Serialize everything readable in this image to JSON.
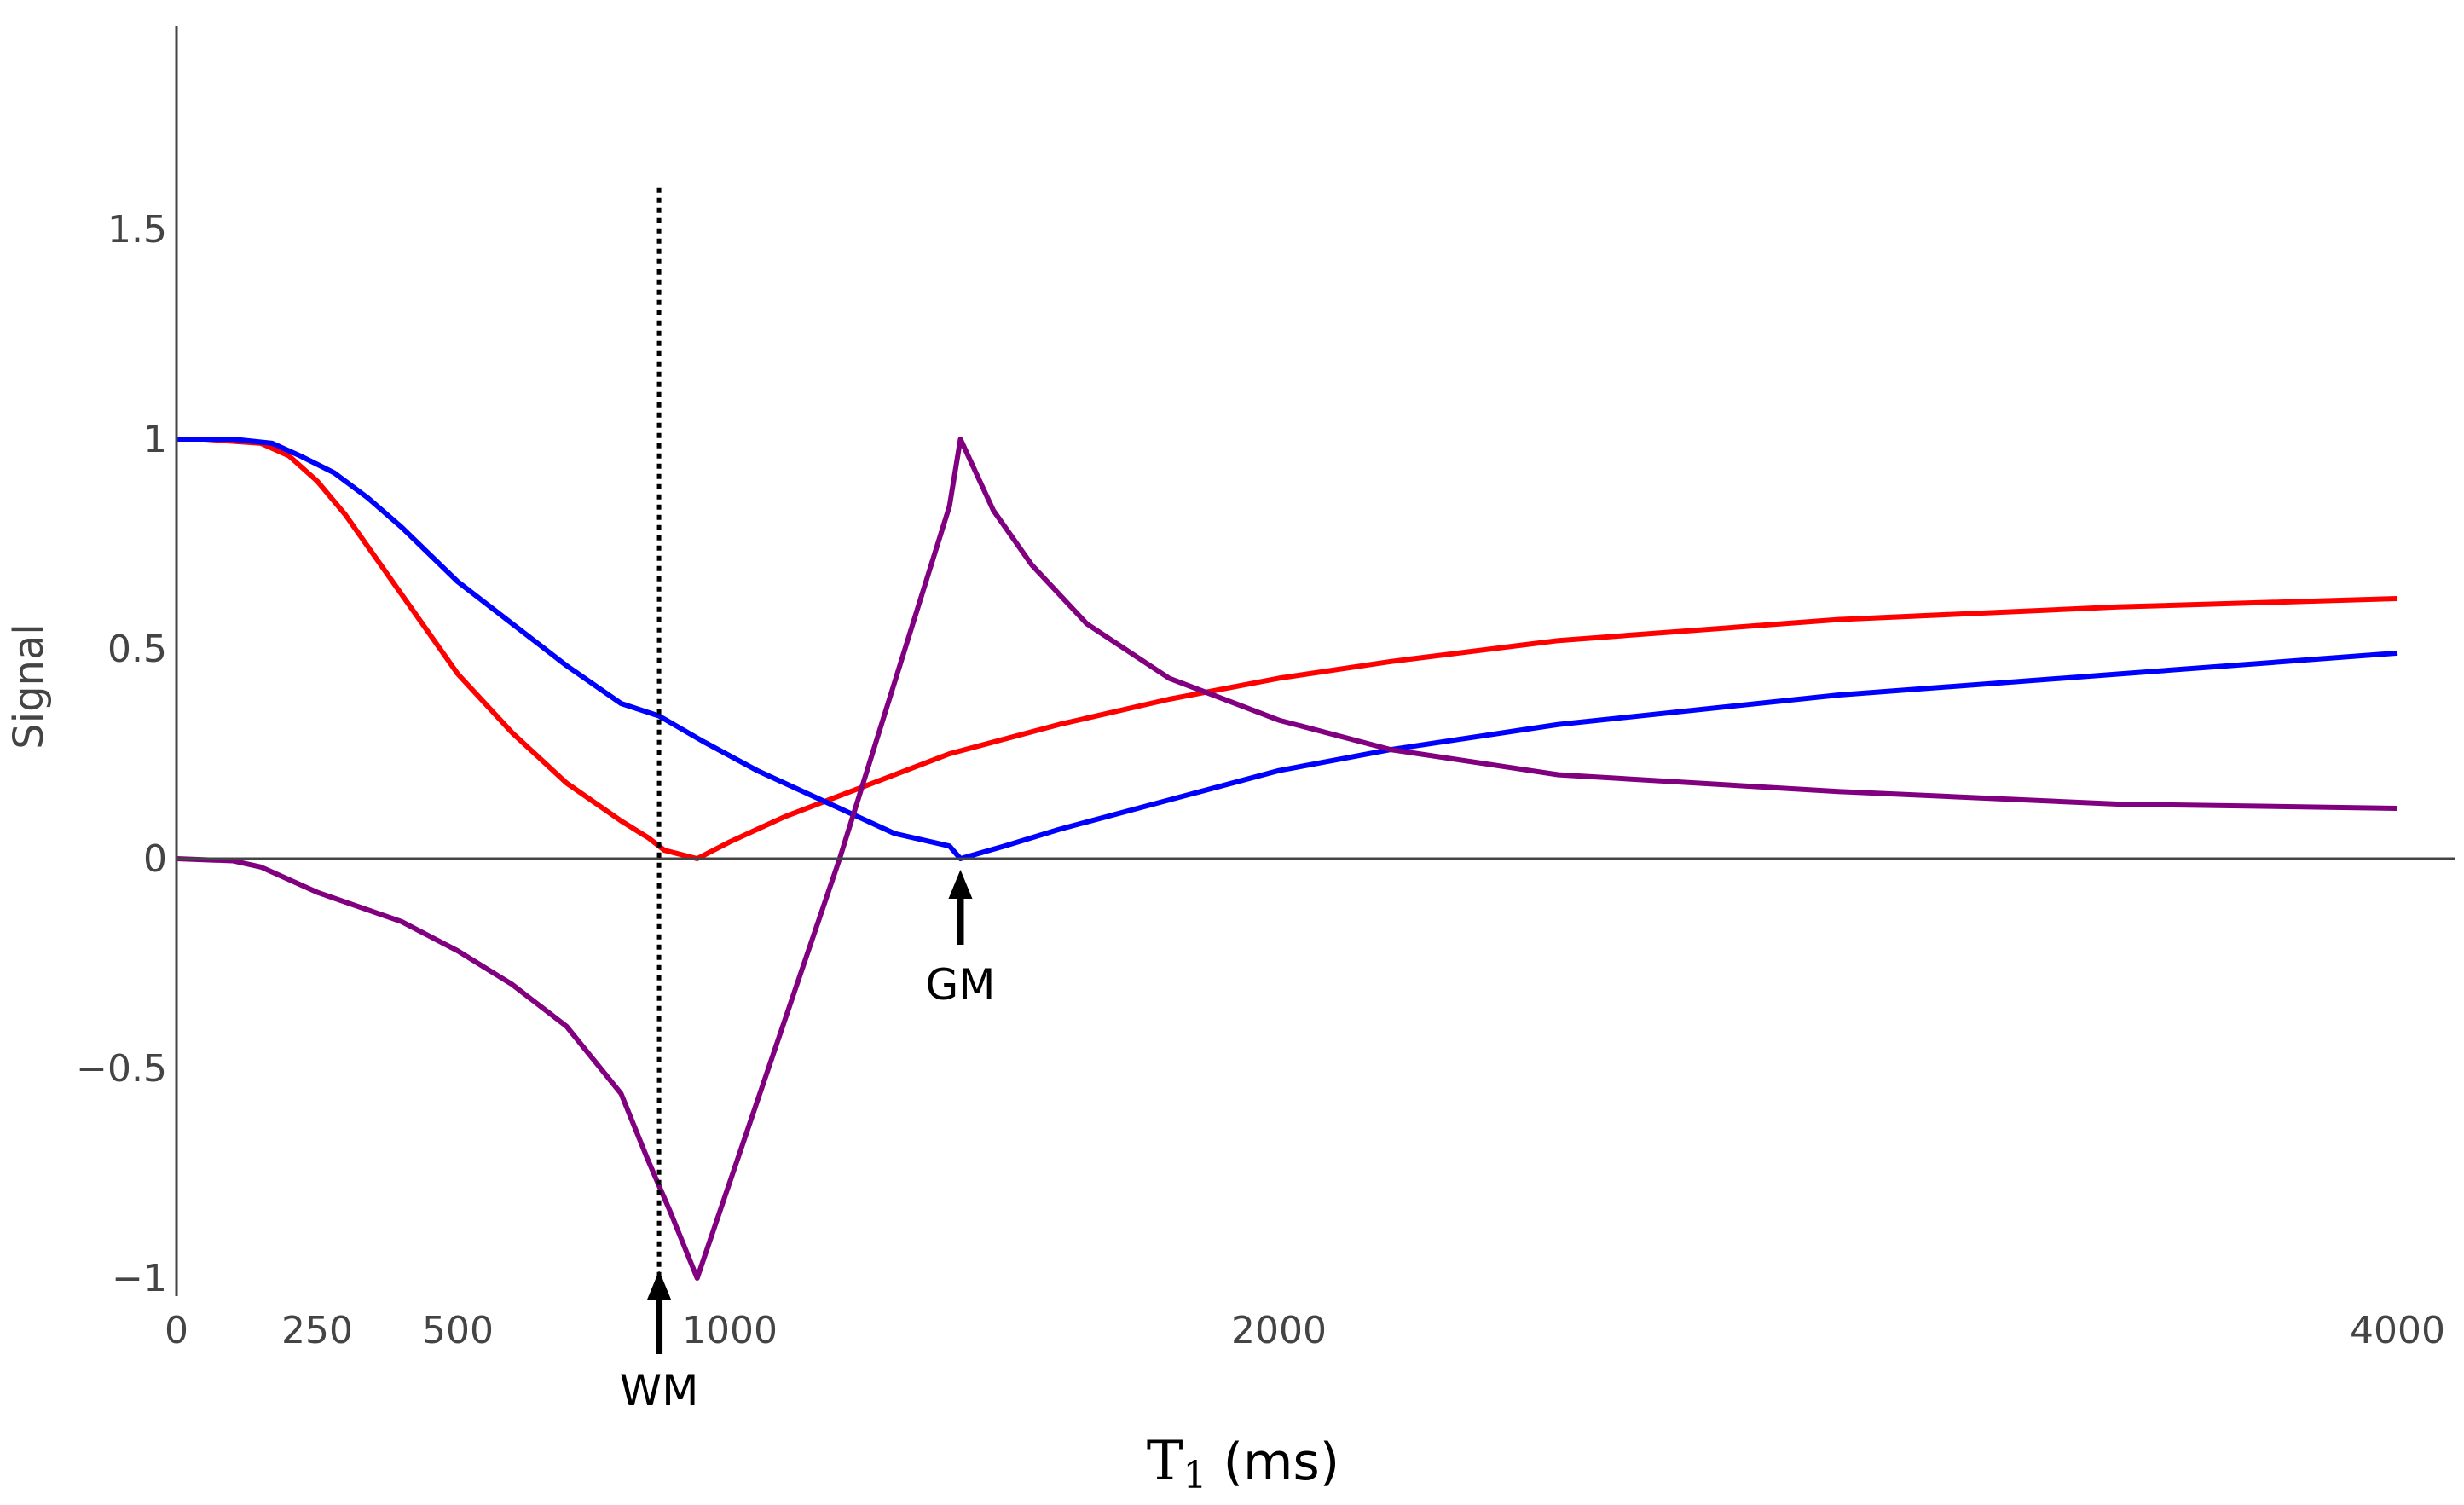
{
  "chart_data": {
    "type": "line",
    "title": "",
    "xlabel": "T₁ (ms)",
    "xlabel_main": "T",
    "xlabel_sub": "1",
    "xlabel_rest": " (ms)",
    "ylabel": "Signal",
    "xlim": [
      0,
      4000
    ],
    "ylim": [
      -1,
      2
    ],
    "x_tick_values": [
      0,
      250,
      500,
      1000,
      2000,
      4000
    ],
    "x_tick_labels": [
      "0",
      "250",
      "500",
      "1000",
      "2000",
      "4000"
    ],
    "y_tick_values": [
      -1,
      -0.5,
      0,
      0.5,
      1,
      1.5
    ],
    "y_tick_labels": [
      "−1",
      "−0.5",
      "0",
      "0.5",
      "1",
      "1.5"
    ],
    "grid": false,
    "series": [
      {
        "name": "red",
        "color": "#ff0000",
        "x": [
          0,
          50,
          100,
          150,
          200,
          250,
          300,
          400,
          500,
          600,
          700,
          800,
          850,
          880,
          940,
          1000,
          1100,
          1200,
          1400,
          1600,
          1800,
          2000,
          2200,
          2500,
          3000,
          3500,
          4000
        ],
        "y": [
          1.0,
          1.0,
          0.995,
          0.99,
          0.96,
          0.9,
          0.82,
          0.63,
          0.44,
          0.3,
          0.18,
          0.09,
          0.05,
          0.02,
          0.0,
          0.04,
          0.1,
          0.15,
          0.25,
          0.32,
          0.38,
          0.43,
          0.47,
          0.52,
          0.57,
          0.6,
          0.62
        ]
      },
      {
        "name": "blue",
        "color": "#0000ff",
        "x": [
          0,
          100,
          170,
          220,
          280,
          340,
          400,
          500,
          600,
          700,
          800,
          870,
          950,
          1050,
          1200,
          1300,
          1400,
          1420,
          1500,
          1600,
          1800,
          2000,
          2200,
          2500,
          3000,
          3500,
          4000
        ],
        "y": [
          1.0,
          1.0,
          0.99,
          0.96,
          0.92,
          0.86,
          0.79,
          0.66,
          0.56,
          0.46,
          0.37,
          0.34,
          0.28,
          0.21,
          0.12,
          0.06,
          0.03,
          0.0,
          0.03,
          0.07,
          0.14,
          0.21,
          0.26,
          0.32,
          0.39,
          0.44,
          0.49
        ]
      },
      {
        "name": "purple",
        "color": "#800080",
        "x": [
          0,
          100,
          150,
          250,
          400,
          500,
          600,
          700,
          800,
          850,
          890,
          940,
          1200,
          1400,
          1420,
          1480,
          1550,
          1650,
          1800,
          2000,
          2200,
          2500,
          3000,
          3500,
          4000
        ],
        "y": [
          0.0,
          -0.005,
          -0.02,
          -0.08,
          -0.15,
          -0.22,
          -0.3,
          -0.4,
          -0.56,
          -0.72,
          -0.84,
          -1.0,
          0.0,
          0.84,
          1.0,
          0.83,
          0.7,
          0.56,
          0.43,
          0.33,
          0.26,
          0.2,
          0.16,
          0.13,
          0.12
        ]
      }
    ],
    "vline": {
      "x": 870,
      "y_top": 1.6,
      "y_bottom": -1.0,
      "style": "dotted",
      "color": "#000000"
    },
    "annotations": [
      {
        "text": "WM",
        "x": 870
      },
      {
        "text": "GM",
        "x": 1420
      }
    ]
  }
}
